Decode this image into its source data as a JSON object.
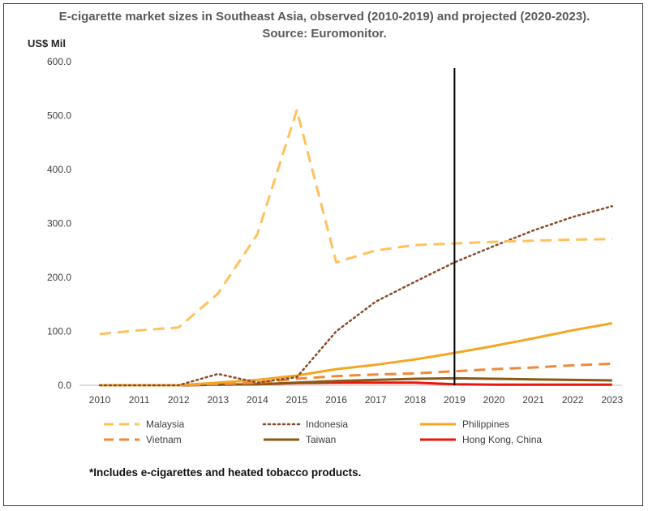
{
  "chart_data": {
    "type": "line",
    "title": "E-cigarette market sizes in Southeast Asia, observed (2010-2019) and projected (2020-2023). Source: Euromonitor.",
    "ylabel": "US$ Mil",
    "xlabel": "",
    "ylim": [
      0,
      600
    ],
    "yticks": [
      0,
      100,
      200,
      300,
      400,
      500,
      600
    ],
    "ytick_labels": [
      "0.0",
      "100.0",
      "200.0",
      "300.0",
      "400.0",
      "500.0",
      "600.0"
    ],
    "x": [
      2010,
      2011,
      2012,
      2013,
      2014,
      2015,
      2016,
      2017,
      2018,
      2019,
      2020,
      2021,
      2022,
      2023
    ],
    "x_labels": [
      "2010",
      "2011",
      "2012",
      "2013",
      "2014",
      "2015",
      "2016",
      "2017",
      "2018",
      "2019",
      "2020",
      "2021",
      "2022",
      "2023"
    ],
    "grid": false,
    "legend_position": "bottom",
    "annotation": {
      "type": "vertical-line",
      "x": 2019,
      "color": "#000000"
    },
    "series": [
      {
        "name": "Malaysia",
        "color": "#FFC15E",
        "style": "dashed",
        "values": [
          95,
          102,
          107,
          170,
          280,
          510,
          228,
          250,
          260,
          263,
          266,
          268,
          270,
          271
        ]
      },
      {
        "name": "Indonesia",
        "color": "#8B4A2B",
        "style": "dotted",
        "values": [
          0,
          0,
          0,
          21,
          5,
          15,
          100,
          155,
          192,
          228,
          258,
          287,
          312,
          332
        ]
      },
      {
        "name": "Philippines",
        "color": "#F5A623",
        "style": "solid",
        "values": [
          0,
          0,
          0,
          5,
          10,
          18,
          30,
          38,
          48,
          60,
          73,
          87,
          102,
          115
        ]
      },
      {
        "name": "Vietnam",
        "color": "#F0883A",
        "style": "dashed",
        "values": [
          0,
          0,
          0,
          2,
          5,
          12,
          17,
          20,
          22,
          26,
          30,
          33,
          37,
          40
        ]
      },
      {
        "name": "Taiwan",
        "color": "#8B5A14",
        "style": "solid",
        "values": [
          0,
          0,
          0,
          1,
          2,
          5,
          8,
          10,
          12,
          13,
          12,
          11,
          10,
          9
        ]
      },
      {
        "name": "Hong Kong, China",
        "color": "#E8160C",
        "style": "solid",
        "values": [
          0,
          0,
          0,
          1,
          2,
          4,
          5,
          5,
          5,
          2,
          1,
          1,
          1,
          1
        ]
      }
    ]
  },
  "footnote": "*Includes e-cigarettes and heated tobacco products."
}
